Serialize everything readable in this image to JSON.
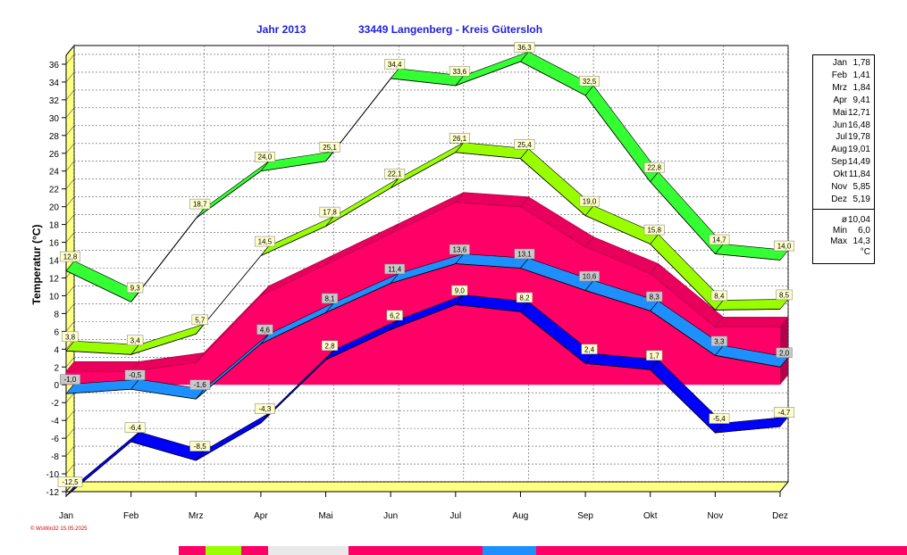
{
  "title": {
    "year": "Jahr  2013",
    "location": "33449 Langenberg - Kreis Gütersloh"
  },
  "footer": "© WsWin32  15.05.2025",
  "chart_data": {
    "type": "area",
    "categories": [
      "Jan",
      "Feb",
      "Mrz",
      "Apr",
      "Mai",
      "Jun",
      "Jul",
      "Aug",
      "Sep",
      "Okt",
      "Nov",
      "Dez"
    ],
    "ylabel": "Temperatur  (°C)",
    "ylim": [
      -12,
      37
    ],
    "yticks": [
      36,
      34,
      32,
      30,
      28,
      26,
      24,
      22,
      20,
      18,
      16,
      14,
      12,
      10,
      8,
      6,
      4,
      2,
      0,
      -2,
      -4,
      -6,
      -8,
      -10,
      -12
    ],
    "grid": true,
    "series": [
      {
        "role": "abs_max",
        "color": "#33ff33",
        "values": [
          12.8,
          9.3,
          18.7,
          24.0,
          25.1,
          34.4,
          33.6,
          36.3,
          32.5,
          22.8,
          14.7,
          14.0
        ],
        "labels": [
          "12,8",
          "9,3",
          "18,7",
          "24,0",
          "25,1",
          "34,4",
          "33,6",
          "36,3",
          "32,5",
          "22,8",
          "14,7",
          "14,0"
        ]
      },
      {
        "role": "avg_max",
        "color": "#99ff00",
        "values": [
          3.8,
          3.4,
          5.7,
          14.5,
          17.8,
          22.1,
          26.1,
          25.4,
          19.0,
          15.8,
          8.4,
          8.5
        ],
        "labels": [
          "3,8",
          "3,4",
          "5,7",
          "14,5",
          "17,8",
          "22,1",
          "26,1",
          "25,4",
          "19,0",
          "15,8",
          "8,4",
          "8,5"
        ]
      },
      {
        "role": "range_fill",
        "color": "#ff0066",
        "values": [
          1.5,
          1.5,
          2.5,
          10,
          13.5,
          17,
          20.5,
          20,
          15.5,
          12.5,
          6.5,
          6.5
        ]
      },
      {
        "role": "avg_mean",
        "color": "#1e8fff",
        "values": [
          -1.0,
          -0.5,
          -1.6,
          4.6,
          8.1,
          11.4,
          13.6,
          13.1,
          10.6,
          8.3,
          3.3,
          2.0
        ],
        "labels": [
          "-1,0",
          "-0,5",
          "-1,6",
          "4,6",
          "8,1",
          "11,4",
          "13,6",
          "13,1",
          "10,6",
          "8,3",
          "3,3",
          "2,0"
        ]
      },
      {
        "role": "avg_min",
        "color": "#0000ff",
        "values": [
          -12.5,
          -6.4,
          -8.5,
          -4.3,
          2.8,
          6.2,
          9.0,
          8.2,
          2.4,
          1.7,
          -5.4,
          -4.7
        ],
        "labels": [
          "-12,5",
          "-6,4",
          "-8,5",
          "-4,3",
          "2,8",
          "6,2",
          "9,0",
          "8,2",
          "2,4",
          "1,7",
          "-5,4",
          "-4,7"
        ]
      }
    ]
  },
  "legend": {
    "months": [
      {
        "m": "Jan",
        "v": "1,78"
      },
      {
        "m": "Feb",
        "v": "1,41"
      },
      {
        "m": "Mrz",
        "v": "1,84"
      },
      {
        "m": "Apr",
        "v": "9,41"
      },
      {
        "m": "Mai",
        "v": "12,71"
      },
      {
        "m": "Jun",
        "v": "16,48"
      },
      {
        "m": "Jul",
        "v": "19,78"
      },
      {
        "m": "Aug",
        "v": "19,01"
      },
      {
        "m": "Sep",
        "v": "14,49"
      },
      {
        "m": "Okt",
        "v": "11,84"
      },
      {
        "m": "Nov",
        "v": "5,85"
      },
      {
        "m": "Dez",
        "v": "5,19"
      }
    ],
    "stats": [
      {
        "m": "ø",
        "v": "10,04"
      },
      {
        "m": "Min",
        "v": "6,0"
      },
      {
        "m": "Max",
        "v": "14,3"
      },
      {
        "m": "",
        "v": "°C"
      }
    ]
  }
}
